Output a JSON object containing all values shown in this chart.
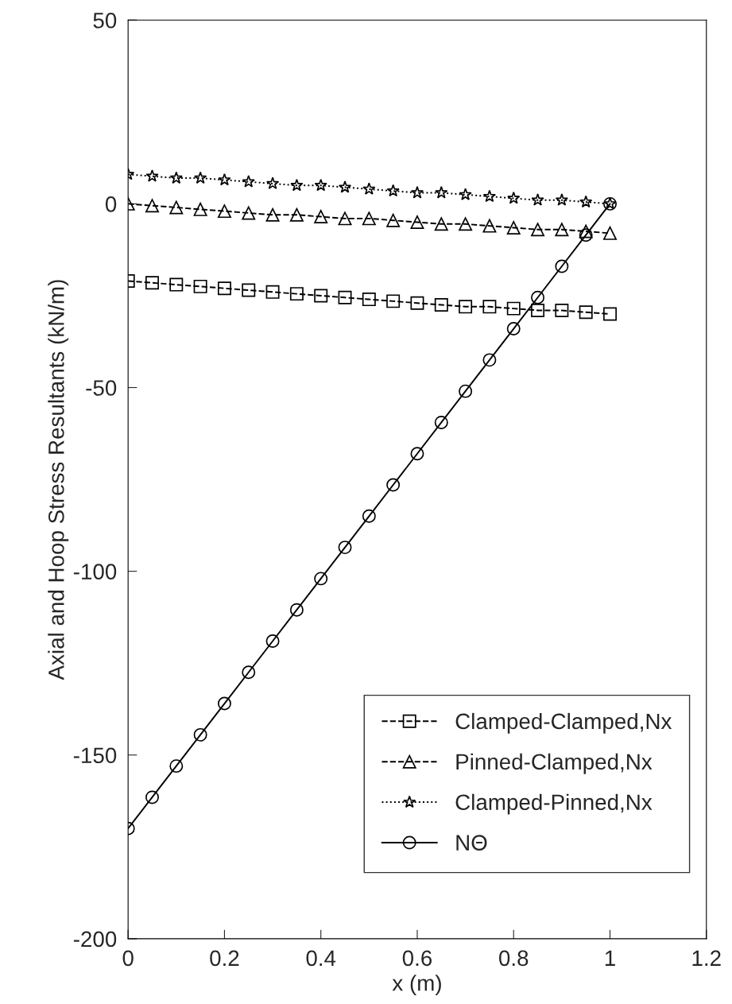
{
  "chart_data": {
    "type": "line",
    "xlabel": "x (m)",
    "ylabel": "Axial and Hoop Stress Resultants (kN/m)",
    "x": [
      0,
      0.05,
      0.1,
      0.15,
      0.2,
      0.25,
      0.3,
      0.35,
      0.4,
      0.45,
      0.5,
      0.55,
      0.6,
      0.65,
      0.7,
      0.75,
      0.8,
      0.85,
      0.9,
      0.95,
      1
    ],
    "series": [
      {
        "name": "Clamped-Clamped,Nx",
        "color": "#000000",
        "marker": "square",
        "line_style": "dashed",
        "values": [
          -21,
          -21.5,
          -22,
          -22.5,
          -23,
          -23.5,
          -24,
          -24.5,
          -25,
          -25.5,
          -26,
          -26.5,
          -27,
          -27.5,
          -28,
          -28,
          -28.5,
          -29,
          -29,
          -29.5,
          -30
        ]
      },
      {
        "name": "Pinned-Clamped,Nx",
        "color": "#000000",
        "marker": "triangle",
        "line_style": "dashed",
        "values": [
          0,
          -0.5,
          -1,
          -1.5,
          -2,
          -2.5,
          -3,
          -3,
          -3.5,
          -4,
          -4,
          -4.5,
          -5,
          -5.5,
          -5.5,
          -6,
          -6.5,
          -7,
          -7,
          -7.5,
          -8
        ]
      },
      {
        "name": "Clamped-Pinned,Nx",
        "color": "#000000",
        "marker": "star",
        "line_style": "dotted",
        "values": [
          8,
          7.5,
          7,
          7,
          6.5,
          6,
          5.5,
          5,
          5,
          4.5,
          4,
          3.5,
          3,
          3,
          2.5,
          2,
          1.5,
          1,
          1,
          0.5,
          0
        ]
      },
      {
        "name": "NΘ",
        "color": "#000000",
        "marker": "circle",
        "line_style": "solid",
        "values": [
          -170,
          -161.5,
          -153,
          -144.5,
          -136,
          -127.5,
          -119,
          -110.5,
          -102,
          -93.5,
          -85,
          -76.5,
          -68,
          -59.5,
          -51,
          -42.5,
          -34,
          -25.5,
          -17,
          -8.5,
          0
        ]
      }
    ],
    "xlim": [
      0,
      1.2
    ],
    "xticks": [
      0,
      0.2,
      0.4,
      0.6,
      0.8,
      1,
      1.2
    ],
    "ylim": [
      -200,
      50
    ],
    "yticks": [
      -200,
      -150,
      -100,
      -50,
      0,
      50
    ],
    "grid": false,
    "legend": "bottom right"
  }
}
